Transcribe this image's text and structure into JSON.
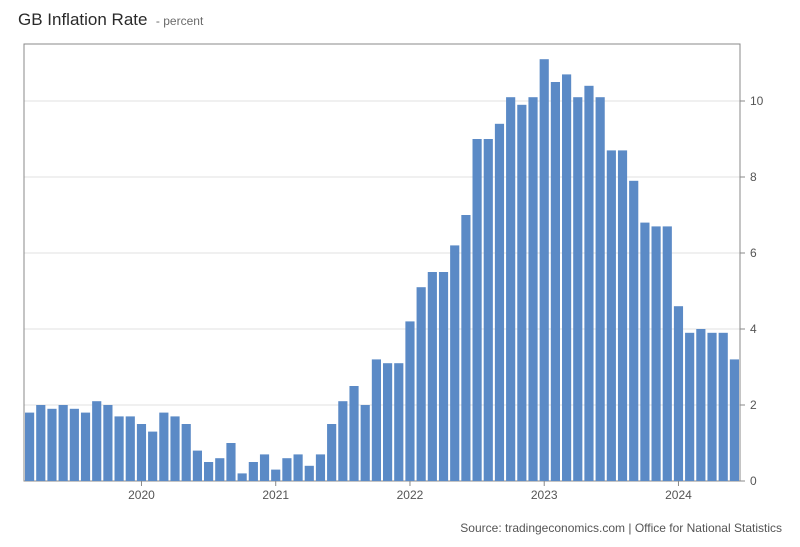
{
  "title_main": "GB Inflation Rate",
  "title_sub": "- percent",
  "source_text": "Source: tradingeconomics.com | Office for National Statistics",
  "chart": {
    "type": "bar",
    "bar_color": "#5b8ac6",
    "border_color": "#888888",
    "background_color": "#ffffff",
    "grid_color": "#e0e0e0",
    "axis_font_size": 12,
    "axis_font_color": "#555555",
    "ymin": 0,
    "ymax": 11.5,
    "yticks": [
      0,
      2,
      4,
      6,
      8,
      10
    ],
    "bar_gap_ratio": 0.18,
    "x_labels": [
      {
        "index": 10,
        "label": "2020"
      },
      {
        "index": 22,
        "label": "2021"
      },
      {
        "index": 34,
        "label": "2022"
      },
      {
        "index": 46,
        "label": "2023"
      },
      {
        "index": 58,
        "label": "2024"
      }
    ],
    "values": [
      1.8,
      2.0,
      1.9,
      2.0,
      1.9,
      1.8,
      2.1,
      2.0,
      1.7,
      1.7,
      1.5,
      1.3,
      1.8,
      1.7,
      1.5,
      0.8,
      0.5,
      0.6,
      1.0,
      0.2,
      0.5,
      0.7,
      0.3,
      0.6,
      0.7,
      0.4,
      0.7,
      1.5,
      2.1,
      2.5,
      2.0,
      3.2,
      3.1,
      3.1,
      4.2,
      5.1,
      5.5,
      5.5,
      6.2,
      7.0,
      9.0,
      9.0,
      9.4,
      10.1,
      9.9,
      10.1,
      11.1,
      10.5,
      10.7,
      10.1,
      10.4,
      10.1,
      8.7,
      8.7,
      7.9,
      6.8,
      6.7,
      6.7,
      4.6,
      3.9,
      4.0,
      3.9,
      3.9,
      3.2
    ]
  }
}
